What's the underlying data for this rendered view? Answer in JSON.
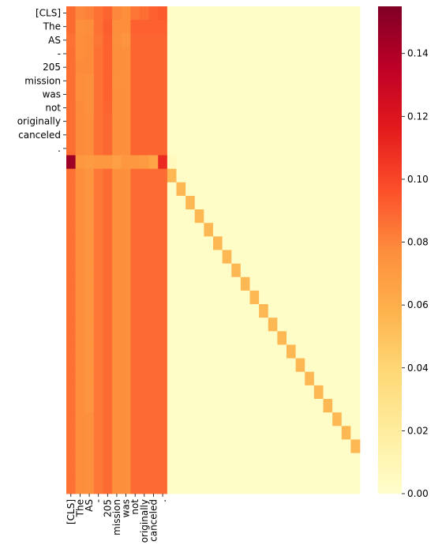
{
  "chart_data": {
    "type": "heatmap",
    "title": "",
    "xlabel": "",
    "ylabel": "",
    "n_rows": 36,
    "n_cols": 32,
    "x_tick_labels": [
      "[CLS]",
      "The",
      "AS",
      "-",
      "205",
      "mission",
      "was",
      "not",
      "originally",
      "canceled",
      "."
    ],
    "y_tick_labels": [
      "[CLS]",
      "The",
      "AS",
      "-",
      "205",
      "mission",
      "was",
      "not",
      "originally",
      "canceled",
      "."
    ],
    "colorbar": {
      "min": 0.0,
      "max": 0.155,
      "ticks": [
        0.0,
        0.02,
        0.04,
        0.06,
        0.08,
        0.1,
        0.12,
        0.14
      ],
      "tick_labels": [
        "0.00",
        "0.02",
        "0.04",
        "0.06",
        "0.08",
        "0.10",
        "0.12",
        "0.14"
      ],
      "colormap": "YlOrRd"
    },
    "values": {
      "token_rows": [
        [
          0.088,
          0.079,
          0.081,
          0.086,
          0.09,
          0.079,
          0.077,
          0.085,
          0.087,
          0.091,
          0.093
        ],
        [
          0.088,
          0.076,
          0.077,
          0.086,
          0.092,
          0.077,
          0.077,
          0.091,
          0.091,
          0.091,
          0.091
        ],
        [
          0.086,
          0.077,
          0.078,
          0.085,
          0.091,
          0.076,
          0.074,
          0.09,
          0.09,
          0.09,
          0.09
        ],
        [
          0.087,
          0.077,
          0.078,
          0.086,
          0.091,
          0.077,
          0.076,
          0.09,
          0.09,
          0.09,
          0.09
        ],
        [
          0.087,
          0.078,
          0.078,
          0.086,
          0.091,
          0.077,
          0.076,
          0.09,
          0.09,
          0.09,
          0.09
        ],
        [
          0.087,
          0.077,
          0.076,
          0.086,
          0.091,
          0.076,
          0.076,
          0.09,
          0.09,
          0.09,
          0.09
        ],
        [
          0.087,
          0.077,
          0.076,
          0.086,
          0.091,
          0.077,
          0.076,
          0.09,
          0.09,
          0.09,
          0.09
        ],
        [
          0.087,
          0.078,
          0.076,
          0.086,
          0.09,
          0.077,
          0.076,
          0.09,
          0.09,
          0.09,
          0.09
        ],
        [
          0.087,
          0.078,
          0.077,
          0.086,
          0.089,
          0.077,
          0.076,
          0.09,
          0.09,
          0.09,
          0.09
        ],
        [
          0.087,
          0.078,
          0.077,
          0.086,
          0.089,
          0.077,
          0.076,
          0.09,
          0.09,
          0.09,
          0.09
        ],
        [
          0.087,
          0.078,
          0.077,
          0.086,
          0.089,
          0.077,
          0.076,
          0.09,
          0.09,
          0.09,
          0.09
        ]
      ],
      "sep_row": [
        0.145,
        0.072,
        0.07,
        0.072,
        0.072,
        0.068,
        0.072,
        0.072,
        0.07,
        0.065,
        0.11,
        0.006
      ],
      "pad_rows_token_cols": [
        0.086,
        0.077,
        0.076,
        0.084,
        0.088,
        0.077,
        0.076,
        0.088,
        0.088,
        0.088,
        0.088
      ],
      "pad_rows_variant_cols": {
        "col": 2,
        "rows_from": 12,
        "rows_to": 29,
        "value": 0.074
      },
      "pad_diagonal": 0.055,
      "background": 0.002
    }
  }
}
